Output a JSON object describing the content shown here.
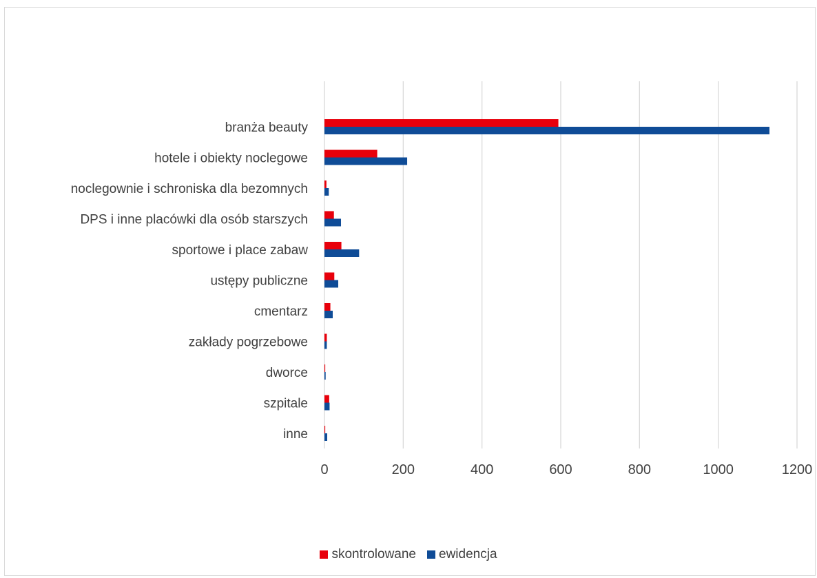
{
  "chart_data": {
    "type": "bar",
    "orientation": "horizontal",
    "categories": [
      "branża beauty",
      "hotele i obiekty noclegowe",
      "noclegownie i schroniska dla bezomnych",
      "DPS i inne placówki dla osób starszych",
      "sportowe i place zabaw ",
      "ustępy publiczne",
      "cmentarz",
      "zakłady pogrzebowe",
      "dworce",
      "szpitale",
      "inne"
    ],
    "series": [
      {
        "name": "skontrolowane",
        "color": "#e8000b",
        "values": [
          594,
          134,
          5,
          24,
          43,
          25,
          15,
          6,
          2,
          12,
          2
        ]
      },
      {
        "name": "ewidencja",
        "color": "#0f4c97",
        "values": [
          1130,
          210,
          11,
          42,
          88,
          35,
          21,
          6,
          3,
          13,
          7
        ]
      }
    ],
    "x_ticks": [
      "0",
      "200",
      "400",
      "600",
      "800",
      "1000",
      "1200"
    ],
    "xlim": [
      0,
      1200
    ],
    "grid": true,
    "legend_position": "bottom",
    "title": "",
    "xlabel": "",
    "ylabel": ""
  }
}
